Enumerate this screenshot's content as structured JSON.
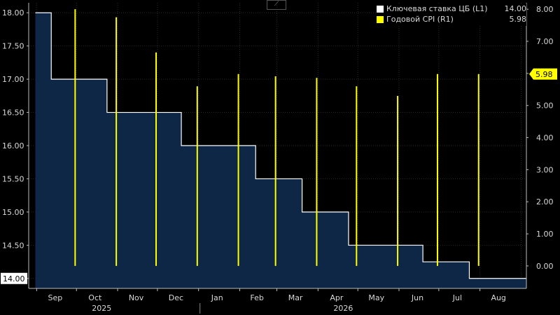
{
  "chart_data": {
    "type": "line",
    "x_axis": {
      "months": [
        "Sep",
        "Oct",
        "Nov",
        "Dec",
        "Jan",
        "Feb",
        "Mar",
        "Apr",
        "May",
        "Jun",
        "Jul",
        "Aug"
      ],
      "years": [
        "2025",
        "2026"
      ]
    },
    "left_axis": {
      "ticks": [
        "18.00",
        "17.50",
        "17.00",
        "16.50",
        "16.00",
        "15.50",
        "15.00",
        "14.50",
        "14.00"
      ],
      "ylim": [
        13.85,
        18.15
      ]
    },
    "right_axis": {
      "ticks": [
        "8.00",
        "7.00",
        "6.00",
        "5.00",
        "4.00",
        "3.00",
        "2.00",
        "1.00",
        "0.00"
      ],
      "ylim": [
        -0.7,
        8.2
      ]
    },
    "series": [
      {
        "name": "Ключевая ставка ЦБ (L1)",
        "last_value": "14.00",
        "color": "#ffffff",
        "fill": "#0e2747",
        "style": "step-area",
        "points": [
          {
            "x": "2025-08-31",
            "y": 18.0
          },
          {
            "x": "2025-09-12",
            "y": 17.0
          },
          {
            "x": "2025-10-24",
            "y": 16.5
          },
          {
            "x": "2025-12-19",
            "y": 16.0
          },
          {
            "x": "2026-02-13",
            "y": 15.5
          },
          {
            "x": "2026-03-20",
            "y": 15.0
          },
          {
            "x": "2026-04-24",
            "y": 14.5
          },
          {
            "x": "2026-06-19",
            "y": 14.25
          },
          {
            "x": "2026-07-24",
            "y": 14.0
          },
          {
            "x": "2026-09-05",
            "y": 14.0
          }
        ]
      },
      {
        "name": "Годовой CPI (R1)",
        "last_value": "5.98",
        "color": "#ffff00",
        "style": "vertical-bars",
        "points": [
          {
            "x": "2025-09-30",
            "y": 8.0
          },
          {
            "x": "2025-10-31",
            "y": 7.75
          },
          {
            "x": "2025-11-30",
            "y": 6.65
          },
          {
            "x": "2025-12-31",
            "y": 5.6
          },
          {
            "x": "2026-01-31",
            "y": 5.98
          },
          {
            "x": "2026-02-28",
            "y": 5.91
          },
          {
            "x": "2026-03-31",
            "y": 5.86
          },
          {
            "x": "2026-04-30",
            "y": 5.6
          },
          {
            "x": "2026-05-31",
            "y": 5.3
          },
          {
            "x": "2026-06-30",
            "y": 5.98
          },
          {
            "x": "2026-07-31",
            "y": 5.98
          }
        ]
      }
    ],
    "left_last_label": "14.00",
    "right_last_label": "5.98",
    "grid": true,
    "legend_position": "top-right"
  },
  "colors": {
    "background": "#000000",
    "grid": "#2a2a2a",
    "area_fill": "#0e2747",
    "rate_line": "#ffffff",
    "cpi_bar": "#ffff00",
    "last_label_right_bg": "#ffff00"
  },
  "icons": {
    "chart_type": "line-chart-icon"
  }
}
